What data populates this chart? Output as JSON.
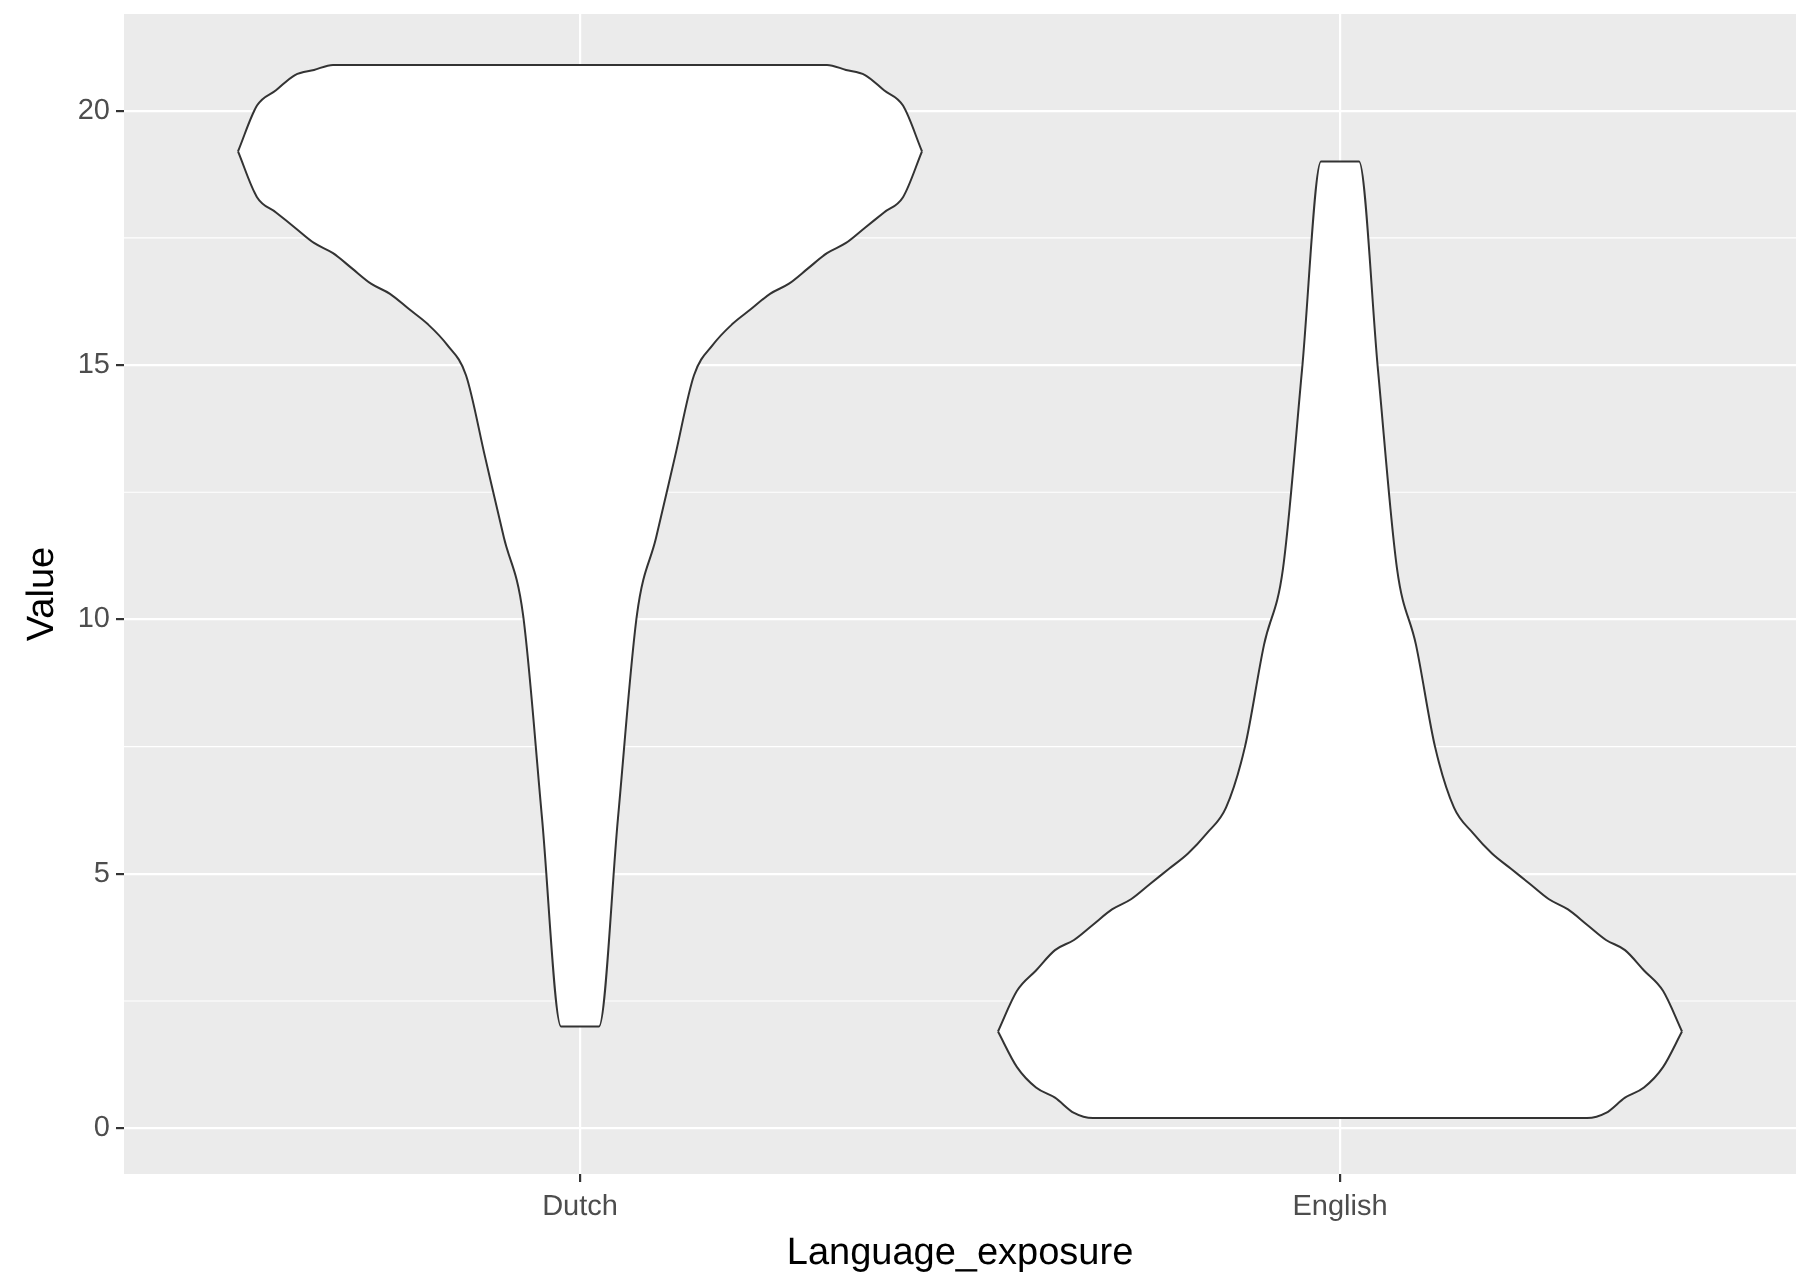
{
  "chart_data": {
    "type": "line",
    "xlabel": "Language_exposure",
    "ylabel": "Value",
    "categories": [
      null,
      null,
      null,
      null,
      null,
      null,
      null,
      null,
      null,
      null,
      null,
      null,
      null,
      null,
      null,
      null,
      null,
      null,
      null,
      null,
      null,
      null,
      null,
      null,
      "Dutch",
      null,
      null,
      null,
      null,
      null,
      null,
      null,
      null,
      null,
      null,
      null,
      null,
      null,
      null,
      null,
      null,
      null,
      null,
      null,
      null,
      null,
      null,
      null,
      null,
      null,
      null,
      null,
      null,
      null,
      null,
      null,
      null,
      null,
      null,
      null,
      null,
      null,
      null,
      null,
      "English",
      null,
      null,
      null,
      null,
      null,
      null,
      null,
      null,
      null,
      null,
      null,
      null,
      null,
      null,
      null,
      null,
      null,
      null,
      null,
      null,
      null,
      null,
      null,
      null
    ],
    "ylim": [
      -0.9,
      21.9
    ],
    "yticks": [
      0,
      5,
      10,
      15,
      20
    ],
    "grid": true,
    "series": [
      {
        "color": "#333333",
        "values": [
          null,
          null,
          null,
          null,
          null,
          null,
          19.2,
          20.1,
          20.4,
          20.7,
          20.8,
          20.9,
          20.9,
          20.9,
          20.9,
          20.9,
          20.9,
          20.9,
          20.9,
          20.9,
          20.9,
          20.9,
          20.9,
          20.9,
          20.9,
          20.9,
          20.9,
          20.9,
          20.9,
          20.9,
          20.9,
          20.9,
          20.9,
          20.9,
          20.9,
          20.9,
          20.9,
          20.9,
          20.8,
          20.7,
          20.4,
          20.1,
          19.2,
          null,
          null,
          null,
          null,
          null,
          null,
          null,
          null,
          null,
          null,
          null,
          null,
          null,
          null,
          null,
          null,
          null,
          null,
          null,
          null,
          null,
          null,
          null,
          null,
          null,
          null,
          null,
          null,
          null,
          null,
          null,
          null,
          null,
          null,
          null,
          null,
          null,
          null,
          null,
          null,
          null,
          null,
          null,
          null,
          null,
          null
        ],
        "lower": [
          null,
          null,
          null,
          null,
          null,
          null,
          19.2,
          18.3,
          18.0,
          17.7,
          17.4,
          17.2,
          16.9,
          16.6,
          16.4,
          16.1,
          15.8,
          15.4,
          14.8,
          13.2,
          11.6,
          10.1,
          6.1,
          2.0,
          2.0,
          2.0,
          6.1,
          10.1,
          11.6,
          13.2,
          14.8,
          15.4,
          15.8,
          16.1,
          16.4,
          16.6,
          16.9,
          17.2,
          17.4,
          17.7,
          18.0,
          18.3,
          19.2,
          null,
          null,
          null,
          null,
          null,
          null,
          null,
          null,
          null,
          null,
          null,
          null,
          null,
          null,
          null,
          null,
          null,
          null,
          null,
          null,
          null,
          null,
          null,
          null,
          null,
          null,
          null,
          null,
          null,
          null,
          null,
          null,
          null,
          null,
          null,
          null,
          null,
          null,
          null,
          null,
          null,
          null,
          null,
          null,
          null,
          null
        ],
        "upper": [
          null,
          null,
          null,
          null,
          null,
          null,
          19.2,
          20.1,
          20.4,
          20.7,
          20.8,
          20.9,
          20.9,
          20.9,
          20.9,
          20.9,
          20.9,
          20.9,
          20.9,
          20.9,
          20.9,
          20.9,
          20.9,
          20.9,
          20.9,
          20.9,
          20.9,
          20.9,
          20.9,
          20.9,
          20.9,
          20.9,
          20.9,
          20.9,
          20.9,
          20.9,
          20.9,
          20.9,
          20.8,
          20.7,
          20.4,
          20.1,
          19.2,
          null,
          null,
          null,
          null,
          null,
          null,
          null,
          null,
          null,
          null,
          null,
          null,
          null,
          null,
          null,
          null,
          null,
          null,
          null,
          null,
          null,
          null,
          null,
          null,
          null,
          null,
          null,
          null,
          null,
          null,
          null,
          null,
          null,
          null,
          null,
          null,
          null,
          null,
          null,
          null,
          null,
          null,
          null,
          null,
          null,
          null
        ]
      },
      {
        "color": "#333333",
        "values": [
          null,
          null,
          null,
          null,
          null,
          null,
          19.2,
          18.3,
          18.0,
          17.7,
          17.4,
          17.2,
          16.9,
          16.6,
          16.4,
          16.1,
          15.8,
          15.4,
          14.8,
          13.2,
          11.6,
          10.1,
          6.1,
          2.0,
          2.0,
          2.0,
          6.1,
          10.1,
          11.6,
          13.2,
          14.8,
          15.4,
          15.8,
          16.1,
          16.4,
          16.6,
          16.9,
          17.2,
          17.4,
          17.7,
          18.0,
          18.3,
          19.2,
          null,
          null,
          null,
          null,
          null,
          null,
          null,
          null,
          null,
          null,
          null,
          null,
          null,
          null,
          null,
          null,
          null,
          null,
          null,
          null,
          null,
          null,
          null,
          null,
          null,
          null,
          null,
          null,
          null,
          null,
          null,
          null,
          null,
          null,
          null,
          null,
          null,
          null,
          null,
          null,
          null,
          null,
          null,
          null,
          null,
          null
        ]
      },
      {
        "color": "#333333",
        "values": [
          null,
          null,
          null,
          null,
          null,
          null,
          null,
          null,
          null,
          null,
          null,
          null,
          null,
          null,
          null,
          null,
          null,
          null,
          null,
          null,
          null,
          null,
          null,
          null,
          null,
          null,
          null,
          null,
          null,
          null,
          null,
          null,
          null,
          null,
          null,
          null,
          null,
          null,
          null,
          null,
          null,
          null,
          null,
          null,
          null,
          null,
          1.9,
          2.7,
          3.1,
          3.5,
          3.7,
          4.0,
          4.3,
          4.5,
          4.8,
          5.1,
          5.4,
          5.8,
          6.3,
          7.5,
          9.5,
          11.0,
          14.9,
          19.0,
          19.0,
          19.0,
          14.9,
          11.0,
          9.5,
          7.5,
          6.3,
          5.8,
          5.4,
          5.1,
          4.8,
          4.5,
          4.3,
          4.0,
          3.7,
          3.5,
          3.1,
          2.7,
          1.9,
          null,
          null,
          null,
          null,
          null,
          null
        ],
        "lower": [
          null,
          null,
          null,
          null,
          null,
          null,
          null,
          null,
          null,
          null,
          null,
          null,
          null,
          null,
          null,
          null,
          null,
          null,
          null,
          null,
          null,
          null,
          null,
          null,
          null,
          null,
          null,
          null,
          null,
          null,
          null,
          null,
          null,
          null,
          null,
          null,
          null,
          null,
          null,
          null,
          null,
          null,
          null,
          null,
          null,
          null,
          1.9,
          1.2,
          0.8,
          0.6,
          0.3,
          0.2,
          0.2,
          0.2,
          0.2,
          0.2,
          0.2,
          0.2,
          0.2,
          0.2,
          0.2,
          0.2,
          0.2,
          0.2,
          0.2,
          0.2,
          0.2,
          0.2,
          0.2,
          0.2,
          0.2,
          0.2,
          0.2,
          0.2,
          0.2,
          0.2,
          0.2,
          0.2,
          0.3,
          0.6,
          0.8,
          1.2,
          1.9,
          null,
          null,
          null,
          null,
          null,
          null
        ],
        "upper": [
          null,
          null,
          null,
          null,
          null,
          null,
          null,
          null,
          null,
          null,
          null,
          null,
          null,
          null,
          null,
          null,
          null,
          null,
          null,
          null,
          null,
          null,
          null,
          null,
          null,
          null,
          null,
          null,
          null,
          null,
          null,
          null,
          null,
          null,
          null,
          null,
          null,
          null,
          null,
          null,
          null,
          null,
          null,
          null,
          null,
          null,
          1.9,
          2.7,
          3.1,
          3.5,
          3.7,
          4.0,
          4.3,
          4.5,
          4.8,
          5.1,
          5.4,
          5.8,
          6.3,
          7.5,
          9.5,
          11.0,
          14.9,
          19.0,
          19.0,
          19.0,
          14.9,
          11.0,
          9.5,
          7.5,
          6.3,
          5.8,
          5.4,
          5.1,
          4.8,
          4.5,
          4.3,
          4.0,
          3.7,
          3.5,
          3.1,
          2.7,
          1.9,
          null,
          null,
          null,
          null,
          null,
          null
        ]
      },
      {
        "color": "#333333",
        "values": [
          null,
          null,
          null,
          null,
          null,
          null,
          null,
          null,
          null,
          null,
          null,
          null,
          null,
          null,
          null,
          null,
          null,
          null,
          null,
          null,
          null,
          null,
          null,
          null,
          null,
          null,
          null,
          null,
          null,
          null,
          null,
          null,
          null,
          null,
          null,
          null,
          null,
          null,
          null,
          null,
          null,
          null,
          null,
          null,
          null,
          null,
          1.9,
          1.2,
          0.8,
          0.6,
          0.3,
          0.2,
          0.2,
          0.2,
          0.2,
          0.2,
          0.2,
          0.2,
          0.2,
          0.2,
          0.2,
          0.2,
          0.2,
          0.2,
          0.2,
          0.2,
          0.2,
          0.2,
          0.2,
          0.2,
          0.2,
          0.2,
          0.2,
          0.2,
          0.2,
          0.2,
          0.2,
          0.2,
          0.3,
          0.6,
          0.8,
          1.2,
          1.9,
          null,
          null,
          null,
          null,
          null,
          null
        ]
      }
    ]
  }
}
